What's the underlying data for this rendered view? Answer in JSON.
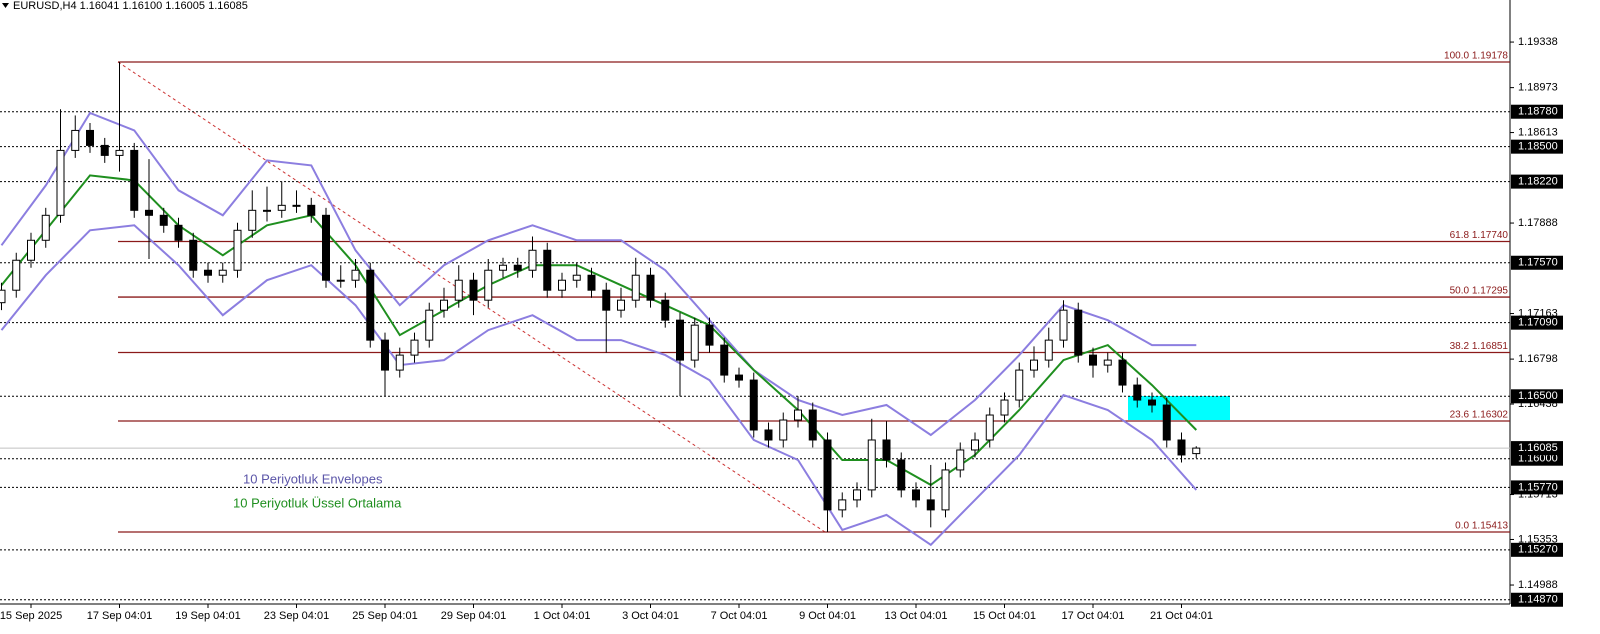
{
  "chart_data": {
    "type": "candlestick",
    "title": "EURUSD,H4  1.16041 1.16100 1.16005 1.16085",
    "categories": [
      null,
      null,
      "15 Sep 2025",
      null,
      null,
      null,
      null,
      null,
      "17 Sep 04:01",
      null,
      null,
      null,
      null,
      null,
      "19 Sep 04:01",
      null,
      null,
      null,
      null,
      null,
      "23 Sep 04:01",
      null,
      null,
      null,
      null,
      null,
      "25 Sep 04:01",
      null,
      null,
      null,
      null,
      null,
      "29 Sep 04:01",
      null,
      null,
      null,
      null,
      null,
      "1 Oct 04:01",
      null,
      null,
      null,
      null,
      null,
      "3 Oct 04:01",
      null,
      null,
      null,
      null,
      null,
      "7 Oct 04:01",
      null,
      null,
      null,
      null,
      null,
      "9 Oct 04:01",
      null,
      null,
      null,
      null,
      null,
      "13 Oct 04:01",
      null,
      null,
      null,
      null,
      null,
      "15 Oct 04:01",
      null,
      null,
      null,
      null,
      null,
      "17 Oct 04:01",
      null,
      null,
      null,
      null,
      null,
      "21 Oct 04:01",
      null
    ],
    "open": [
      1.1725,
      1.1735,
      1.1759,
      1.1775,
      1.1795,
      1.1847,
      1.1863,
      1.1851,
      1.1843,
      1.1847,
      1.1799,
      1.1795,
      1.1787,
      1.1775,
      1.1751,
      1.1747,
      1.1751,
      1.1783,
      1.1799,
      1.1799,
      1.1803,
      1.1803,
      1.1795,
      1.1743,
      1.1743,
      1.1751,
      1.1695,
      1.1671,
      1.1683,
      1.1695,
      1.1719,
      1.1727,
      1.1743,
      1.1727,
      1.1751,
      1.1755,
      1.1751,
      1.1767,
      1.1735,
      1.1743,
      1.1747,
      1.1735,
      1.1719,
      1.1727,
      1.1747,
      1.1727,
      1.1711,
      1.1679,
      1.1707,
      1.1691,
      1.1667,
      1.1663,
      1.1623,
      1.1615,
      1.1631,
      1.1639,
      1.1615,
      1.1559,
      1.1567,
      1.1575,
      1.1615,
      1.1599,
      1.1575,
      1.1567,
      1.1559,
      1.1591,
      1.1607,
      1.1615,
      1.1635,
      1.1647,
      1.1671,
      1.1679,
      1.1695,
      1.1719,
      1.1683,
      1.1675,
      1.1679,
      1.1659,
      1.1647,
      1.1643,
      1.1615,
      1.16041
    ],
    "high": [
      1.1741,
      1.1765,
      1.1781,
      1.1801,
      1.188,
      1.1875,
      1.1869,
      1.1857,
      1.19178,
      1.1853,
      1.184,
      1.1801,
      1.1793,
      1.1781,
      1.1757,
      1.1757,
      1.1789,
      1.1815,
      1.1818,
      1.1822,
      1.1815,
      1.1809,
      1.1801,
      1.1755,
      1.176,
      1.1757,
      1.1701,
      1.1689,
      1.1701,
      1.1725,
      1.1737,
      1.1755,
      1.1749,
      1.176,
      1.1761,
      1.1761,
      1.1778,
      1.1773,
      1.1749,
      1.1757,
      1.1753,
      1.1741,
      1.1737,
      1.1761,
      1.1753,
      1.1733,
      1.1717,
      1.1713,
      1.1713,
      1.1697,
      1.1673,
      1.1669,
      1.1629,
      1.1637,
      1.165,
      1.1645,
      1.1621,
      1.1573,
      1.1581,
      1.1632,
      1.163,
      1.1605,
      1.1581,
      1.1595,
      1.1597,
      1.1613,
      1.1621,
      1.1641,
      1.1653,
      1.1677,
      1.169,
      1.1705,
      1.1727,
      1.1725,
      1.1689,
      1.1685,
      1.1685,
      1.1665,
      1.1653,
      1.1649,
      1.1621,
      1.161
    ],
    "low": [
      1.1719,
      1.1729,
      1.1753,
      1.1769,
      1.1789,
      1.1841,
      1.1845,
      1.1837,
      1.183,
      1.1793,
      1.176,
      1.1781,
      1.1769,
      1.1745,
      1.1741,
      1.1741,
      1.1745,
      1.1777,
      1.179,
      1.1793,
      1.1797,
      1.1789,
      1.1737,
      1.1737,
      1.1737,
      1.1689,
      1.165,
      1.1665,
      1.1677,
      1.1689,
      1.1713,
      1.1721,
      1.1715,
      1.1721,
      1.1745,
      1.1745,
      1.1745,
      1.1729,
      1.1729,
      1.1737,
      1.1729,
      1.1685,
      1.1713,
      1.1721,
      1.1721,
      1.1705,
      1.165,
      1.1673,
      1.1685,
      1.1661,
      1.1657,
      1.1617,
      1.1609,
      1.1609,
      1.1625,
      1.1609,
      1.15413,
      1.1553,
      1.1561,
      1.1569,
      1.1593,
      1.1569,
      1.1561,
      1.1545,
      1.1553,
      1.1585,
      1.1601,
      1.1609,
      1.1629,
      1.1641,
      1.1665,
      1.1673,
      1.1689,
      1.1677,
      1.1665,
      1.1669,
      1.1653,
      1.1641,
      1.1637,
      1.1609,
      1.1597,
      1.16005
    ],
    "close": [
      1.1735,
      1.1759,
      1.1775,
      1.1795,
      1.1847,
      1.1863,
      1.1851,
      1.1843,
      1.1847,
      1.1799,
      1.1795,
      1.1787,
      1.1775,
      1.1751,
      1.1747,
      1.1751,
      1.1783,
      1.1799,
      1.1799,
      1.1803,
      1.1803,
      1.1795,
      1.1743,
      1.1743,
      1.1751,
      1.1695,
      1.1671,
      1.1683,
      1.1695,
      1.1719,
      1.1727,
      1.1743,
      1.1727,
      1.1751,
      1.1755,
      1.1751,
      1.1767,
      1.1735,
      1.1743,
      1.1747,
      1.1735,
      1.1719,
      1.1727,
      1.1747,
      1.1727,
      1.1711,
      1.1679,
      1.1707,
      1.1691,
      1.1667,
      1.1663,
      1.1623,
      1.1615,
      1.1631,
      1.1639,
      1.1615,
      1.1559,
      1.1567,
      1.1575,
      1.1615,
      1.1599,
      1.1575,
      1.1567,
      1.1559,
      1.1591,
      1.1607,
      1.1615,
      1.1635,
      1.1647,
      1.1671,
      1.1679,
      1.1695,
      1.1719,
      1.1683,
      1.1675,
      1.1679,
      1.1659,
      1.1647,
      1.1643,
      1.1615,
      1.1603,
      1.16085
    ],
    "up_color": "#ffffff",
    "down_color": "#000000",
    "series": [
      {
        "name": "10 Periyotluk Envelopes",
        "color": "#8c7ee0",
        "x": [
          0,
          3,
          6,
          9,
          12,
          15,
          18,
          21,
          24,
          27,
          30,
          33,
          36,
          39,
          42,
          45,
          48,
          51,
          54,
          57,
          60,
          63,
          66,
          69,
          72,
          75,
          78,
          81
        ],
        "upper": [
          1.1771,
          1.1819,
          1.1877,
          1.1863,
          1.1815,
          1.1795,
          1.1839,
          1.1835,
          1.1767,
          1.1723,
          1.1755,
          1.1775,
          1.1787,
          1.1775,
          1.1775,
          1.1751,
          1.1711,
          1.1671,
          1.1647,
          1.1635,
          1.1643,
          1.1619,
          1.1647,
          1.1683,
          1.1723,
          1.1711,
          1.1691,
          1.1691
        ],
        "lower": [
          1.1703,
          1.1747,
          1.1783,
          1.1787,
          1.1755,
          1.1715,
          1.1743,
          1.1755,
          1.1723,
          1.1675,
          1.1679,
          1.1703,
          1.1715,
          1.1695,
          1.1695,
          1.1683,
          1.1663,
          1.1615,
          1.1599,
          1.1543,
          1.1555,
          1.1531,
          1.1567,
          1.1603,
          1.1651,
          1.1639,
          1.1615,
          1.1575
        ]
      },
      {
        "name": "10 Periyotluk Üssel Ortalama",
        "color": "#1f8f1f",
        "x": [
          0,
          3,
          6,
          9,
          12,
          15,
          18,
          21,
          24,
          27,
          30,
          33,
          36,
          39,
          42,
          45,
          48,
          51,
          54,
          57,
          60,
          63,
          66,
          69,
          72,
          75,
          78,
          81
        ],
        "values": [
          1.1739,
          1.1783,
          1.1827,
          1.1823,
          1.1787,
          1.1763,
          1.1787,
          1.1795,
          1.1755,
          1.1699,
          1.1719,
          1.1739,
          1.1755,
          1.1755,
          1.1739,
          1.1723,
          1.1707,
          1.1671,
          1.1639,
          1.1599,
          1.1599,
          1.1579,
          1.1603,
          1.1639,
          1.1679,
          1.1691,
          1.1659,
          1.1623
        ]
      }
    ],
    "ylim": [
      1.14836,
      1.19675
    ],
    "yticks": [
      1.19338,
      1.18973,
      1.18613,
      1.17888,
      1.17163,
      1.16798,
      1.16438,
      1.15713,
      1.15353,
      1.14988
    ],
    "levels": [
      {
        "value": 1.1878,
        "label": "1.18780"
      },
      {
        "value": 1.185,
        "label": "1.18500"
      },
      {
        "value": 1.1822,
        "label": "1.18220"
      },
      {
        "value": 1.1757,
        "label": "1.17570"
      },
      {
        "value": 1.1709,
        "label": "1.17090"
      },
      {
        "value": 1.165,
        "label": "1.16500"
      },
      {
        "value": 1.16,
        "label": "1.16000"
      },
      {
        "value": 1.1577,
        "label": "1.15770"
      },
      {
        "value": 1.1527,
        "label": "1.15270"
      },
      {
        "value": 1.1487,
        "label": "1.14870"
      }
    ],
    "bid": 1.16085,
    "fib_levels": [
      {
        "value": 1.19178,
        "label": "100.0 1.19178"
      },
      {
        "value": 1.1774,
        "label": "61.8 1.17740"
      },
      {
        "value": 1.17295,
        "label": "50.0 1.17295"
      },
      {
        "value": 1.16851,
        "label": "38.2 1.16851"
      },
      {
        "value": 1.16302,
        "label": "23.6 1.16302"
      },
      {
        "value": 1.15413,
        "label": "0.0 1.15413"
      }
    ],
    "fib_color": "#8b1a1a",
    "grid": false
  }
}
